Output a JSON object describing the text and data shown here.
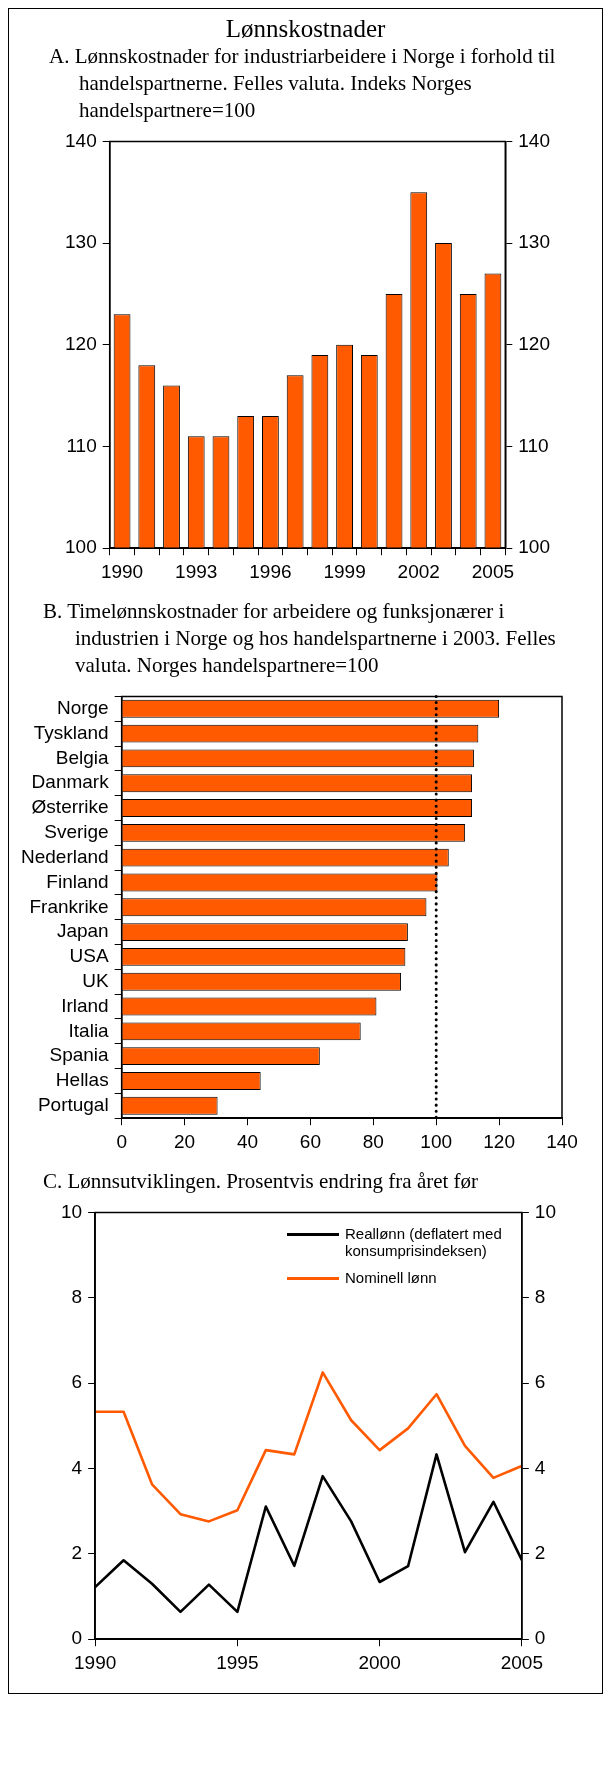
{
  "chart_data": [
    {
      "type": "bar",
      "title": "Lønnskostnader",
      "subtitle": "A.  Lønnskostnader for industriarbeidere i Norge i forhold til handelspartnerne. Felles valuta. Indeks Norges handelspartnere=100",
      "categories": [
        "1990",
        null,
        null,
        "1993",
        null,
        null,
        "1996",
        null,
        null,
        "1999",
        null,
        null,
        "2002",
        null,
        null,
        "2005"
      ],
      "values": [
        123,
        118,
        116,
        111,
        111,
        113,
        113,
        117,
        119,
        120,
        119,
        125,
        135,
        130,
        125,
        127
      ],
      "color": "#ff5a00",
      "ylim": [
        100,
        140
      ],
      "yticks": [
        100,
        110,
        120,
        130,
        140
      ],
      "y2lim": [
        100,
        140
      ],
      "y2ticks": [
        100,
        110,
        120,
        130,
        140
      ]
    },
    {
      "type": "bar",
      "orientation": "horizontal",
      "title": "B. Timelønnskostnader for arbeidere og funksjonærer i industrien  i Norge og  hos handelspartnerne i 2003. Felles valuta. Norges handelspartnere=100",
      "categories": [
        "Norge",
        "Tyskland",
        "Belgia",
        "Danmark",
        "Østerrike",
        "Sverige",
        "Nederland",
        "Finland",
        "Frankrike",
        "Japan",
        "USA",
        "UK",
        "Irland",
        "Italia",
        "Spania",
        "Hellas",
        "Portugal"
      ],
      "values": [
        120,
        113.4,
        112,
        111.4,
        111.4,
        109.2,
        104,
        100.4,
        96.9,
        91,
        90.2,
        88.8,
        81,
        76,
        63,
        44.2,
        30.5
      ],
      "color": "#ff5a00",
      "xlim": [
        0,
        140
      ],
      "xticks": [
        0,
        20,
        40,
        60,
        80,
        100,
        120,
        140
      ],
      "ref_lines": [
        {
          "axis": "x",
          "value": 100,
          "label": null,
          "color": "#000000",
          "line_style": "dotted"
        }
      ]
    },
    {
      "type": "line",
      "title": "C.  Lønnsutviklingen. Prosentvis endring fra  året før",
      "x": [
        1990,
        1991,
        1992,
        1993,
        1994,
        1995,
        1996,
        1997,
        1998,
        1999,
        2000,
        2001,
        2002,
        2003,
        2004,
        2005
      ],
      "series": [
        {
          "name": "Reallønn (deflatert med konsumprisindeksen)",
          "color": "#000000",
          "values": [
            1.22,
            1.85,
            1.3,
            0.64,
            1.28,
            0.64,
            3.11,
            1.72,
            3.82,
            2.76,
            1.34,
            1.71,
            4.33,
            2.04,
            3.22,
            1.85
          ]
        },
        {
          "name": "Nominell lønn",
          "color": "#ff5a00",
          "values": [
            5.33,
            5.33,
            3.63,
            2.93,
            2.76,
            3.02,
            4.43,
            4.33,
            6.25,
            5.13,
            4.43,
            4.94,
            5.74,
            4.53,
            3.78,
            4.06
          ]
        }
      ],
      "xlim": [
        1990,
        2005
      ],
      "xticks": [
        1990,
        1995,
        2000,
        2005
      ],
      "ylim": [
        0,
        10
      ],
      "yticks": [
        0,
        2,
        4,
        6,
        8,
        10
      ],
      "y2lim": [
        0,
        10
      ],
      "y2ticks": [
        0,
        2,
        4,
        6,
        8,
        10
      ],
      "legend": "top right",
      "line_style": "solid"
    }
  ]
}
